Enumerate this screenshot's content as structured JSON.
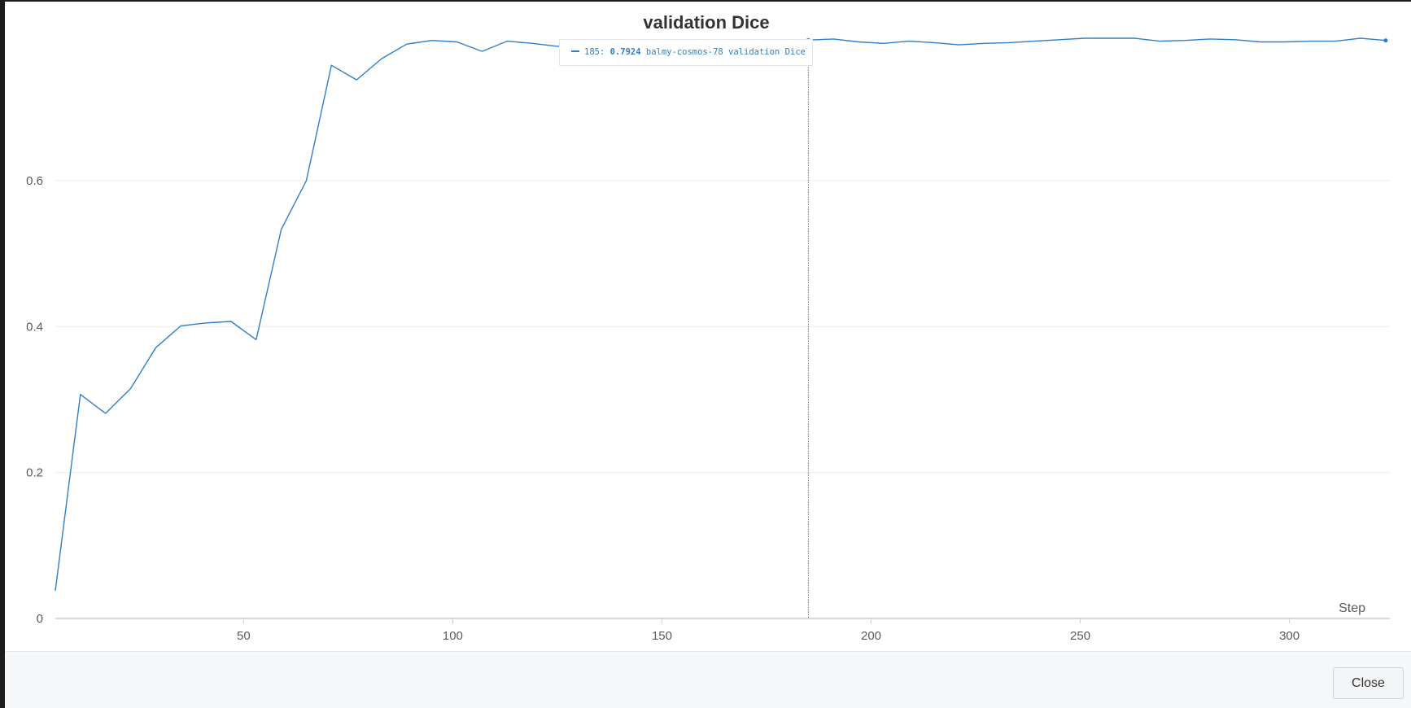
{
  "colors": {
    "series": "#2e7fc9",
    "grid": "#ebedef",
    "axis": "#c9ccd0",
    "tick_text": "#555a5f",
    "title": "#333333"
  },
  "footer": {
    "close_label": "Close"
  },
  "tooltip": {
    "step": "185:",
    "value": "0.7924",
    "series_label": "balmy-cosmos-78 validation Dice"
  },
  "chart_data": {
    "type": "line",
    "title": "validation Dice",
    "xlabel": "Step",
    "ylabel": "",
    "xlim": [
      5,
      324
    ],
    "ylim": [
      0,
      0.795
    ],
    "grid": true,
    "xticks": [
      50,
      100,
      150,
      200,
      250,
      300
    ],
    "xtick_labels": [
      "50",
      "100",
      "150",
      "200",
      "250",
      "300"
    ],
    "yticks": [
      0,
      0.2,
      0.4,
      0.6
    ],
    "ytick_labels": [
      "0",
      "0.2",
      "0.4",
      "0.6"
    ],
    "hover": {
      "step": 185,
      "value": 0.7924
    },
    "series": [
      {
        "name": "balmy-cosmos-78 validation Dice",
        "x": [
          5,
          11,
          17,
          23,
          29,
          35,
          41,
          47,
          53,
          59,
          65,
          71,
          77,
          83,
          89,
          95,
          101,
          107,
          113,
          119,
          125,
          131,
          137,
          143,
          149,
          155,
          161,
          167,
          173,
          179,
          185,
          191,
          197,
          203,
          209,
          215,
          221,
          227,
          233,
          239,
          245,
          251,
          257,
          263,
          269,
          275,
          281,
          287,
          293,
          299,
          305,
          311,
          317,
          323
        ],
        "y": [
          0.038,
          0.307,
          0.281,
          0.315,
          0.371,
          0.401,
          0.405,
          0.407,
          0.382,
          0.533,
          0.6,
          0.758,
          0.738,
          0.767,
          0.787,
          0.792,
          0.79,
          0.777,
          0.791,
          0.788,
          0.784,
          0.787,
          0.789,
          0.788,
          0.79,
          0.789,
          0.788,
          0.79,
          0.791,
          0.79,
          0.7924,
          0.794,
          0.79,
          0.788,
          0.791,
          0.789,
          0.786,
          0.788,
          0.789,
          0.791,
          0.793,
          0.795,
          0.795,
          0.795,
          0.791,
          0.792,
          0.794,
          0.793,
          0.79,
          0.79,
          0.791,
          0.791,
          0.795,
          0.792
        ]
      }
    ]
  }
}
